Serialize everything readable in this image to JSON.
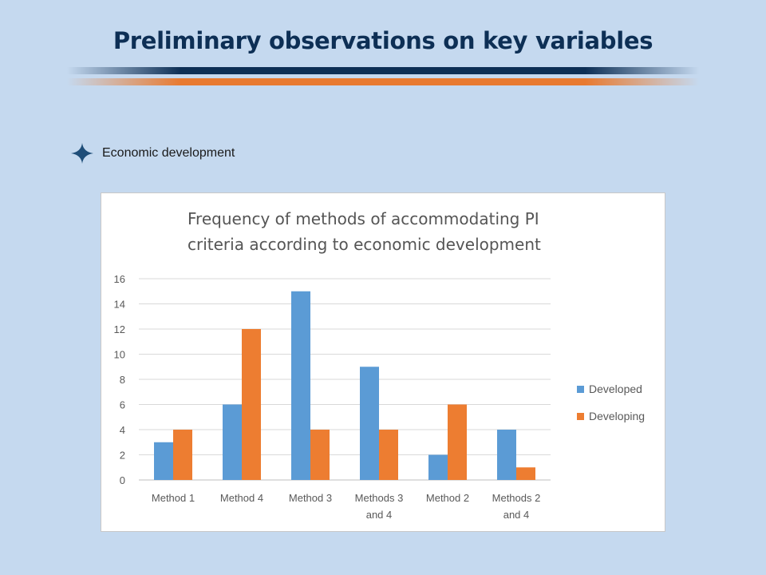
{
  "slide": {
    "title": "Preliminary observations on key variables",
    "bullet": "Economic development",
    "bullet_icon": "four-point-star-icon"
  },
  "colors": {
    "background": "#c5d9ef",
    "title": "#0d2f55",
    "rule_navy": "#0d2f55",
    "rule_orange": "#e87a30",
    "developed": "#5b9bd5",
    "developing": "#ed7d31"
  },
  "chart_data": {
    "type": "bar",
    "title_lines": [
      "Frequency of methods of accommodating PI",
      "criteria according to economic development"
    ],
    "categories": [
      [
        "Method 1"
      ],
      [
        "Method 4"
      ],
      [
        "Method 3"
      ],
      [
        "Methods 3",
        "and 4"
      ],
      [
        "Method 2"
      ],
      [
        "Methods 2",
        "and 4"
      ]
    ],
    "series": [
      {
        "name": "Developed",
        "values": [
          3,
          6,
          15,
          9,
          2,
          4
        ],
        "color": "#5b9bd5"
      },
      {
        "name": "Developing",
        "values": [
          4,
          12,
          4,
          4,
          6,
          1
        ],
        "color": "#ed7d31"
      }
    ],
    "ylim": [
      0,
      16
    ],
    "yticks": [
      0,
      2,
      4,
      6,
      8,
      10,
      12,
      14,
      16
    ],
    "grid": true,
    "legend_position": "right"
  }
}
